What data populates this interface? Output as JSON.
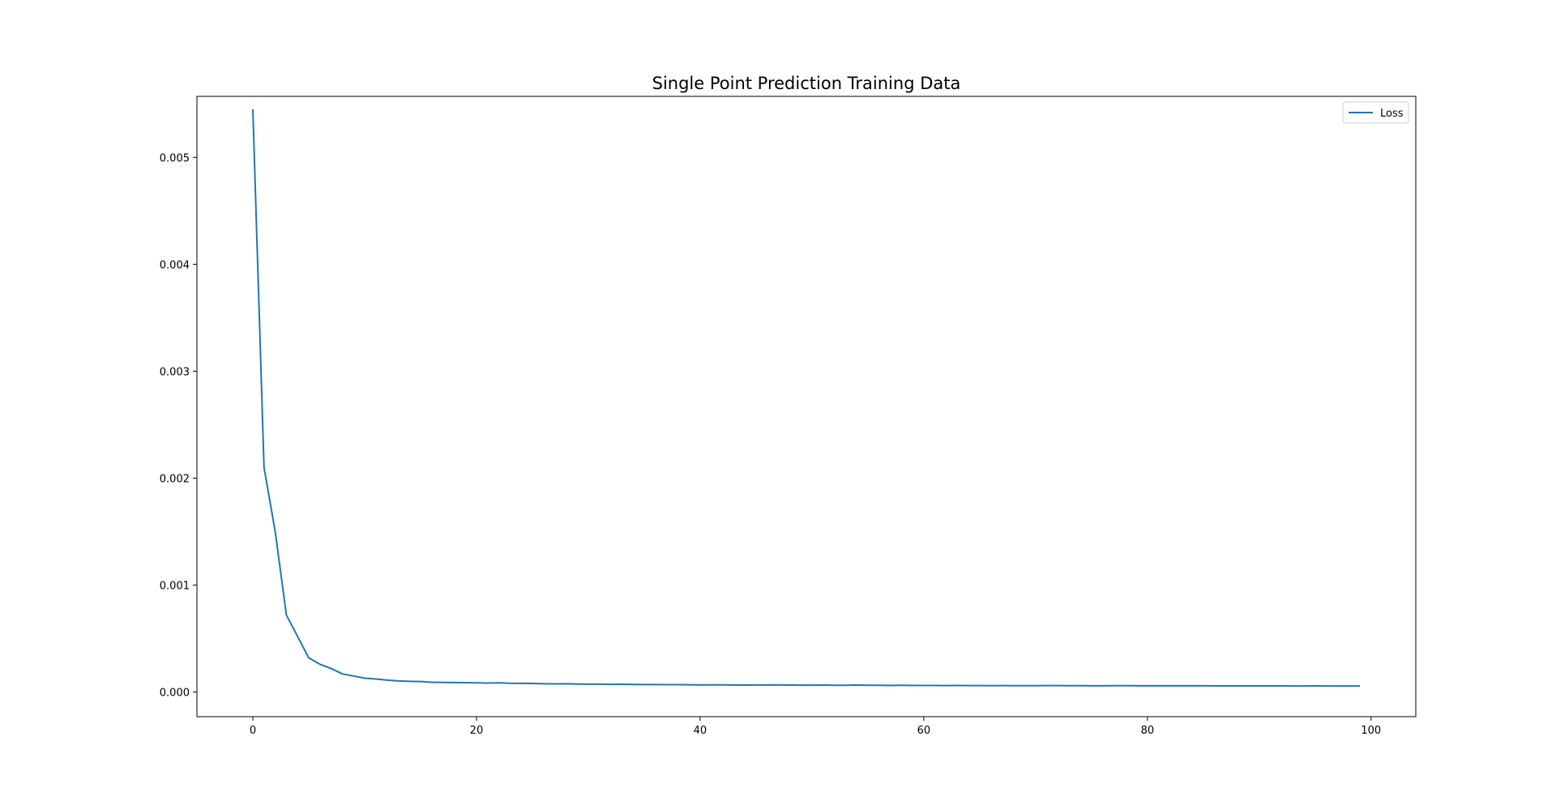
{
  "chart_data": {
    "type": "line",
    "title": "Single Point Prediction Training Data",
    "xlabel": "",
    "ylabel": "",
    "xlim": [
      -5,
      104
    ],
    "ylim": [
      -0.00023,
      0.00557
    ],
    "x_ticks": [
      0,
      20,
      40,
      60,
      80,
      100
    ],
    "y_ticks": [
      0.0,
      0.001,
      0.002,
      0.003,
      0.004,
      0.005
    ],
    "x_tick_labels": [
      "0",
      "20",
      "40",
      "60",
      "80",
      "100"
    ],
    "y_tick_labels": [
      "0.000",
      "0.001",
      "0.002",
      "0.003",
      "0.004",
      "0.005"
    ],
    "grid": false,
    "legend_position": "top-right",
    "series": [
      {
        "name": "Loss",
        "color": "#1f77b4",
        "x": [
          0,
          1,
          2,
          3,
          4,
          5,
          6,
          7,
          8,
          9,
          10,
          11,
          12,
          13,
          14,
          15,
          16,
          17,
          18,
          19,
          20,
          21,
          22,
          23,
          24,
          25,
          26,
          27,
          28,
          29,
          30,
          31,
          32,
          33,
          34,
          35,
          36,
          37,
          38,
          39,
          40,
          41,
          42,
          43,
          44,
          45,
          46,
          47,
          48,
          49,
          50,
          51,
          52,
          53,
          54,
          55,
          56,
          57,
          58,
          59,
          60,
          61,
          62,
          63,
          64,
          65,
          66,
          67,
          68,
          69,
          70,
          71,
          72,
          73,
          74,
          75,
          76,
          77,
          78,
          79,
          80,
          81,
          82,
          83,
          84,
          85,
          86,
          87,
          88,
          89,
          90,
          91,
          92,
          93,
          94,
          95,
          96,
          97,
          98,
          99
        ],
        "values": [
          0.00545,
          0.0021,
          0.0015,
          0.00072,
          0.00052,
          0.00032,
          0.00026,
          0.00022,
          0.00017,
          0.00015,
          0.00013,
          0.000122,
          0.000112,
          0.000104,
          0.0001,
          9.8e-05,
          9.2e-05,
          9e-05,
          8.9e-05,
          8.8e-05,
          8.6e-05,
          8.4e-05,
          8.6e-05,
          8.2e-05,
          8.1e-05,
          8e-05,
          7.8e-05,
          7.7e-05,
          7.8e-05,
          7.5e-05,
          7.4e-05,
          7.4e-05,
          7.2e-05,
          7.3e-05,
          7.1e-05,
          7e-05,
          7e-05,
          6.9e-05,
          6.9e-05,
          6.8e-05,
          6.6e-05,
          6.7e-05,
          6.7e-05,
          6.6e-05,
          6.5e-05,
          6.6e-05,
          6.6e-05,
          6.7e-05,
          6.5e-05,
          6.4e-05,
          6.4e-05,
          6.5e-05,
          6.3e-05,
          6.3e-05,
          6.5e-05,
          6.3e-05,
          6.3e-05,
          6.2e-05,
          6.3e-05,
          6.2e-05,
          6.2e-05,
          6.2e-05,
          6.1e-05,
          6.2e-05,
          6.1e-05,
          6.1e-05,
          6e-05,
          6.1e-05,
          6e-05,
          6e-05,
          6e-05,
          6.1e-05,
          6.1e-05,
          6e-05,
          6e-05,
          5.9e-05,
          5.9e-05,
          6e-05,
          6e-05,
          5.9e-05,
          5.9e-05,
          5.9e-05,
          5.9e-05,
          5.9e-05,
          5.9e-05,
          5.9e-05,
          5.8e-05,
          5.8e-05,
          5.8e-05,
          5.8e-05,
          5.8e-05,
          5.8e-05,
          5.8e-05,
          5.7e-05,
          5.7e-05,
          5.8e-05,
          5.7e-05,
          5.7e-05,
          5.7e-05,
          5.7e-05
        ]
      }
    ]
  }
}
